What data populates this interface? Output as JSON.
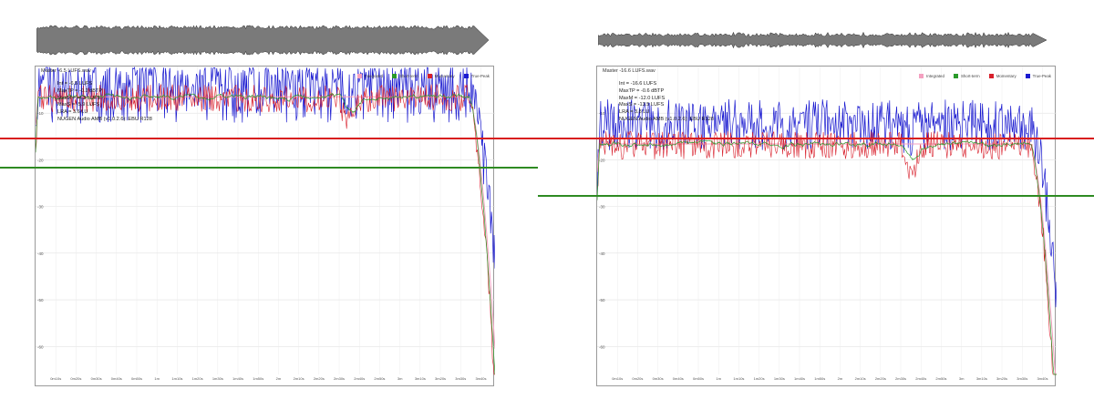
{
  "legend": [
    "Integrated",
    "Short-term",
    "Momentary",
    "True-Peak"
  ],
  "colors": {
    "integrated": "#f4a0c0",
    "short_term": "#2a9a2a",
    "momentary": "#d8202c",
    "true_peak": "#1a1ad0",
    "red_reference": "#d81e1e",
    "green_reference": "#2e8b22"
  },
  "y_tick_labels": [
    "-10",
    "-20",
    "-30",
    "-40",
    "-50",
    "-60"
  ],
  "x_tick_labels": [
    "0m10s",
    "0m20s",
    "0m30s",
    "0m40s",
    "0m50s",
    "1m",
    "1m10s",
    "1m20s",
    "1m30s",
    "1m40s",
    "1m50s",
    "2m",
    "2m10s",
    "2m20s",
    "2m30s",
    "2m40s",
    "2m50s",
    "3m",
    "3m10s",
    "3m20s",
    "3m30s",
    "3m40s"
  ],
  "chart_data": [
    {
      "type": "line",
      "title": "Master -6.5 LUFS.wav",
      "stats": [
        "Int = -6.5 LUFS",
        "MaxTP = -0.2 dBTP",
        "MaxM = -4.3 LUFS",
        "MaxS = -5.9 LUFS",
        "LRA = 3.6 LU",
        "NUGEN Audio AMB (v1.0.2.6): EBU R128"
      ],
      "ylim": [
        -66,
        0
      ],
      "xlim": [
        0,
        227
      ],
      "series_levels": {
        "integrated": -6.5,
        "short_term": -6.5,
        "momentary": -6.5,
        "true_peak": -0.2
      }
    },
    {
      "type": "line",
      "title": "Master -16.6 LUFS.wav",
      "stats": [
        "Int = -16.6 LUFS",
        "MaxTP = -0.6 dBTP",
        "MaxM = -12.0 LUFS",
        "MaxS = -13.5 LUFS",
        "LRA = 3.8 LU",
        "NUGEN Audio AMB (v1.0.2.6): EBU R128"
      ],
      "ylim": [
        -66,
        0
      ],
      "xlim": [
        0,
        227
      ],
      "series_levels": {
        "integrated": -16.6,
        "short_term": -16.6,
        "momentary": -16.6,
        "true_peak": -7.5
      }
    }
  ]
}
